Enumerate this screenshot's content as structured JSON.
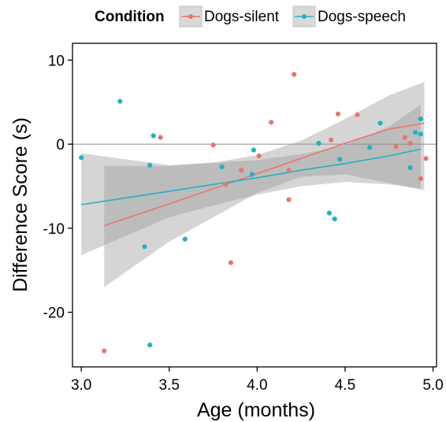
{
  "chart_data": {
    "type": "scatter",
    "xlabel": "Age (months)",
    "ylabel": "Difference Score (s)",
    "xlim": [
      2.95,
      5.02
    ],
    "ylim": [
      -26.5,
      12
    ],
    "xticks": [
      3.0,
      3.5,
      4.0,
      4.5,
      5.0
    ],
    "xtick_labels": [
      "3.0",
      "3.5",
      "4.0",
      "4.5",
      "5.0"
    ],
    "yticks": [
      10,
      0,
      -10,
      -20
    ],
    "ytick_labels": [
      "10",
      "0",
      "-10",
      "-20"
    ],
    "reference_line_y": 0,
    "legend": {
      "title": "Condition",
      "position": "top",
      "entries": [
        "Dogs-silent",
        "Dogs-speech"
      ]
    },
    "series": [
      {
        "name": "Dogs-silent",
        "color": "#E8766E",
        "points": [
          [
            3.13,
            -24.6
          ],
          [
            3.45,
            0.8
          ],
          [
            3.75,
            -0.1
          ],
          [
            3.82,
            -4.8
          ],
          [
            3.85,
            -14.1
          ],
          [
            3.91,
            -3.1
          ],
          [
            4.01,
            -1.4
          ],
          [
            4.08,
            2.6
          ],
          [
            4.18,
            -3.1
          ],
          [
            4.18,
            -6.6
          ],
          [
            4.21,
            8.3
          ],
          [
            4.42,
            0.5
          ],
          [
            4.46,
            3.6
          ],
          [
            4.57,
            3.5
          ],
          [
            4.79,
            -0.3
          ],
          [
            4.84,
            0.8
          ],
          [
            4.87,
            0.1
          ],
          [
            4.93,
            -4.1
          ],
          [
            4.96,
            -1.7
          ]
        ],
        "fit": {
          "x": [
            3.13,
            3.5,
            3.75,
            4.0,
            4.25,
            4.5,
            4.75,
            4.95
          ],
          "y": [
            -9.7,
            -7.1,
            -5.3,
            -3.5,
            -1.7,
            0.1,
            1.8,
            2.5
          ],
          "lower": [
            -17.0,
            -11.6,
            -8.7,
            -5.8,
            -3.9,
            -3.6,
            -4.6,
            -5.5
          ],
          "upper": [
            -2.6,
            -2.6,
            -2.2,
            -1.3,
            0.4,
            3.0,
            5.8,
            7.4
          ]
        }
      },
      {
        "name": "Dogs-speech",
        "color": "#1FB3C3",
        "points": [
          [
            3.0,
            -1.6
          ],
          [
            3.22,
            5.1
          ],
          [
            3.36,
            -12.2
          ],
          [
            3.39,
            -23.9
          ],
          [
            3.39,
            -2.5
          ],
          [
            3.41,
            1.0
          ],
          [
            3.59,
            -11.3
          ],
          [
            3.8,
            -2.7
          ],
          [
            3.97,
            -3.6
          ],
          [
            3.98,
            -0.7
          ],
          [
            4.35,
            0.1
          ],
          [
            4.41,
            -8.2
          ],
          [
            4.44,
            -8.9
          ],
          [
            4.47,
            -1.8
          ],
          [
            4.64,
            -0.4
          ],
          [
            4.7,
            2.5
          ],
          [
            4.87,
            -2.8
          ],
          [
            4.9,
            1.4
          ],
          [
            4.93,
            3.0
          ],
          [
            4.93,
            1.2
          ]
        ],
        "fit": {
          "x": [
            3.0,
            3.5,
            3.75,
            4.0,
            4.25,
            4.5,
            4.75,
            4.93
          ],
          "y": [
            -7.2,
            -5.6,
            -4.8,
            -4.0,
            -3.1,
            -2.3,
            -1.4,
            -0.6
          ],
          "lower": [
            -13.2,
            -8.7,
            -7.3,
            -6.0,
            -5.0,
            -4.5,
            -4.8,
            -5.3
          ],
          "upper": [
            -1.1,
            -2.5,
            -2.2,
            -1.9,
            -1.2,
            -0.1,
            2.1,
            4.7
          ]
        }
      }
    ]
  }
}
